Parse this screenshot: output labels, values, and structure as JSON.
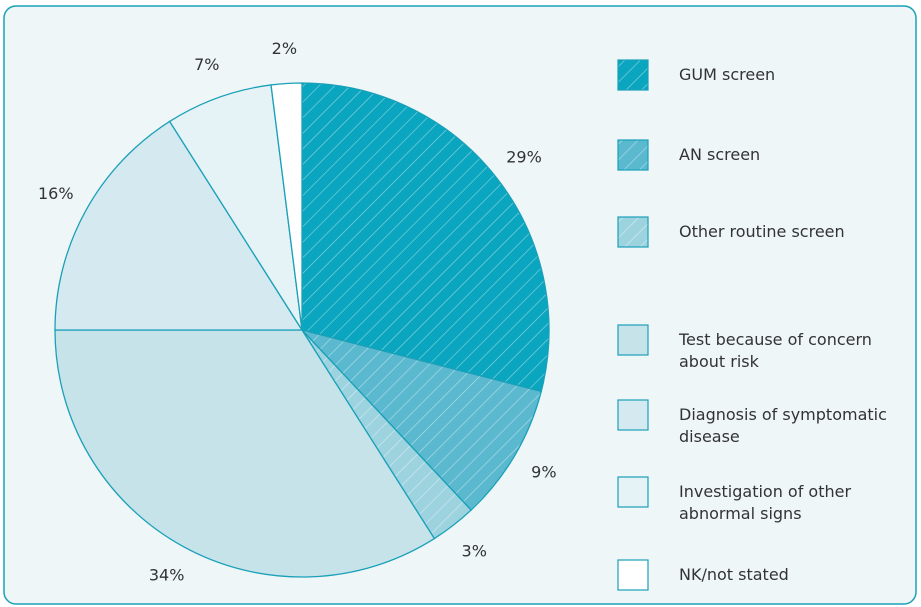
{
  "chart_data": {
    "type": "pie",
    "categories": [
      "GUM screen",
      "AN screen",
      "Other routine screen",
      "Test because of concern about risk",
      "Diagnosis of symptomatic disease",
      "Investigation of other abnormal signs",
      "NK/not stated"
    ],
    "values": [
      29,
      9,
      3,
      34,
      16,
      7,
      2
    ],
    "value_labels": [
      "29%",
      "9%",
      "3%",
      "34%",
      "16%",
      "7%",
      "2%"
    ],
    "colors": [
      "#0aa5bf",
      "#5bb9cf",
      "#9dd3df",
      "#c6e3ea",
      "#d5eaf0",
      "#e5f2f6",
      "#ffffff"
    ],
    "hatched": [
      true,
      true,
      true,
      false,
      false,
      false,
      false
    ]
  }
}
